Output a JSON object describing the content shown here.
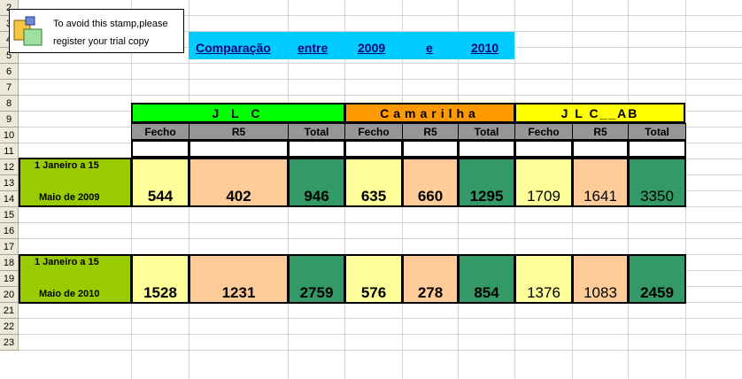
{
  "stamp": {
    "line1": "To avoid this stamp,please",
    "line2": "register your trial copy"
  },
  "title": {
    "word1": "Comparação",
    "word2": "entre",
    "word3": "2009",
    "word4": "e",
    "word5": "2010"
  },
  "row_numbers": [
    "2",
    "3",
    "4",
    "5",
    "6",
    "7",
    "8",
    "9",
    "10",
    "11",
    "12",
    "13",
    "14",
    "15",
    "16",
    "17",
    "18",
    "19",
    "20",
    "21",
    "22",
    "23"
  ],
  "groups": [
    {
      "label": "J L C",
      "color": "#00ff00"
    },
    {
      "label": "Camarilha",
      "color": "#ff9900"
    },
    {
      "label": "J L C__AB",
      "color": "#ffff00"
    }
  ],
  "subheaders": [
    "Fecho",
    "R5",
    "Total",
    "Fecho",
    "R5",
    "Total",
    "Fecho",
    "R5",
    "Total"
  ],
  "periods": [
    {
      "line1": "1 Janeiro a  15",
      "line2": "Maio de 2009",
      "values": [
        "544",
        "402",
        "946",
        "635",
        "660",
        "1295",
        "1709",
        "1641",
        "3350"
      ]
    },
    {
      "line1": "1 Janeiro a  15",
      "line2": "Maio de 2010",
      "values": [
        "1528",
        "1231",
        "2759",
        "576",
        "278",
        "854",
        "1376",
        "1083",
        "2459"
      ]
    }
  ],
  "colors": {
    "fecho": "#ffff99",
    "r5": "#ffcc99",
    "total": "#339966",
    "period": "#99cc00",
    "title_band": "#00ccff"
  }
}
